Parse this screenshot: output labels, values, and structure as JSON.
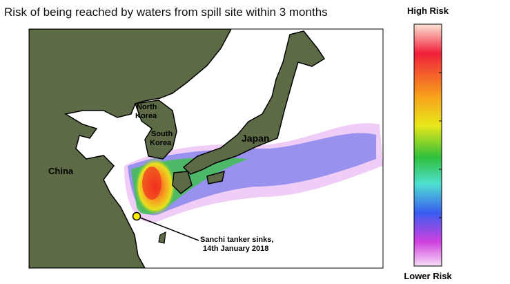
{
  "title": "Risk of being reached by waters from spill site within 3 months",
  "colorbar": {
    "high_label": "High Risk",
    "low_label": "Lower Risk"
  },
  "map": {
    "labels": [
      {
        "lines": [
          "North",
          "Korea"
        ]
      },
      {
        "lines": [
          "South",
          "Korea"
        ]
      },
      {
        "lines": [
          "Japan"
        ]
      },
      {
        "lines": [
          "China"
        ]
      }
    ],
    "annotation": {
      "lines": [
        "Sanchi tanker sinks,",
        "14th January 2018"
      ]
    }
  }
}
